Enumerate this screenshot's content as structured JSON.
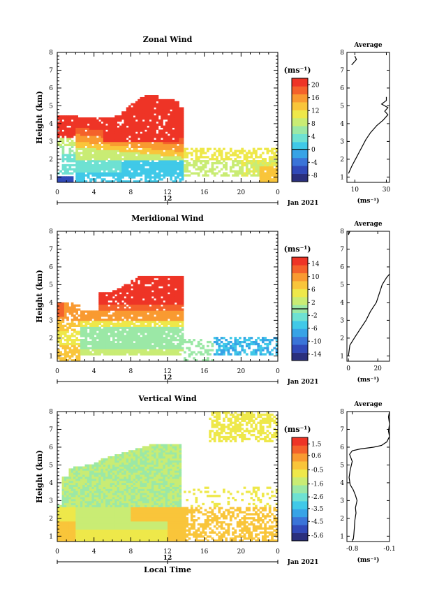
{
  "chart_data": [
    {
      "type": "heatmap",
      "title": "Zonal Wind",
      "ylabel": "Height (km)",
      "xlabel": "",
      "x_ticks": [
        "0",
        "4",
        "8",
        "12",
        "16",
        "20",
        "0"
      ],
      "y_ticks": [
        "1",
        "2",
        "3",
        "4",
        "5",
        "6",
        "7",
        "8"
      ],
      "date_axis_label": "12",
      "date_label": "Jan 2021",
      "colorbar": {
        "unit": "(ms⁻¹)",
        "labels": [
          "20",
          "16",
          "12",
          "8",
          "4",
          "0",
          "-4",
          "-8"
        ],
        "range": [
          -10,
          22
        ]
      },
      "average_profile": {
        "title": "Average",
        "xlabel": "(ms⁻¹)",
        "x_ticks": [
          "10",
          "30"
        ],
        "xlim": [
          5,
          32
        ],
        "points": [
          [
            6,
            1.2
          ],
          [
            8,
            1.6
          ],
          [
            11,
            2.1
          ],
          [
            14,
            2.6
          ],
          [
            17,
            3.1
          ],
          [
            20,
            3.5
          ],
          [
            24,
            3.9
          ],
          [
            28,
            4.2
          ],
          [
            31,
            4.5
          ],
          [
            29,
            4.7
          ],
          [
            31,
            4.9
          ],
          [
            27,
            5.1
          ],
          [
            30,
            5.3
          ],
          [
            30,
            5.5
          ]
        ],
        "points_upper": [
          [
            8,
            7.3
          ],
          [
            11,
            7.6
          ],
          [
            10,
            7.8
          ]
        ]
      }
    },
    {
      "type": "heatmap",
      "title": "Meridional Wind",
      "ylabel": "Height (km)",
      "xlabel": "",
      "x_ticks": [
        "0",
        "4",
        "8",
        "12",
        "16",
        "20",
        "0"
      ],
      "y_ticks": [
        "1",
        "2",
        "3",
        "4",
        "5",
        "6",
        "7",
        "8"
      ],
      "date_axis_label": "12",
      "date_label": "Jan 2021",
      "colorbar": {
        "unit": "(ms⁻¹)",
        "labels": [
          "14",
          "10",
          "6",
          "2",
          "-2",
          "-6",
          "-10",
          "-14"
        ],
        "range": [
          -16,
          16
        ]
      },
      "average_profile": {
        "title": "Average",
        "xlabel": "(ms⁻¹)",
        "x_ticks": [
          "0",
          "20"
        ],
        "xlim": [
          -1,
          28
        ],
        "points": [
          [
            0,
            1.0
          ],
          [
            1,
            1.6
          ],
          [
            4,
            2.0
          ],
          [
            8,
            2.5
          ],
          [
            12,
            3.0
          ],
          [
            15,
            3.5
          ],
          [
            19,
            4.0
          ],
          [
            21,
            4.5
          ],
          [
            23,
            5.0
          ],
          [
            26,
            5.4
          ],
          [
            28,
            5.6
          ]
        ],
        "points_upper": [
          [
            0,
            7.8
          ],
          [
            1,
            8.0
          ]
        ]
      }
    },
    {
      "type": "heatmap",
      "title": "Vertical Wind",
      "ylabel": "Height (km)",
      "xlabel": "Local Time",
      "x_ticks": [
        "0",
        "4",
        "8",
        "12",
        "16",
        "20",
        "0"
      ],
      "y_ticks": [
        "1",
        "2",
        "3",
        "4",
        "5",
        "6",
        "7",
        "8"
      ],
      "date_axis_label": "12",
      "date_label": "Jan 2021",
      "colorbar": {
        "unit": "(ms⁻¹)",
        "labels": [
          "1.5",
          "0.6",
          "-0.5",
          "-1.6",
          "-2.6",
          "-3.5",
          "-4.5",
          "-5.6"
        ],
        "range": [
          -6.0,
          2.0
        ]
      },
      "average_profile": {
        "title": "Average",
        "xlabel": "(ms⁻¹)",
        "x_ticks": [
          "-0.8",
          "-0.1"
        ],
        "xlim": [
          -0.9,
          -0.1
        ],
        "points": [
          [
            -0.78,
            0.8
          ],
          [
            -0.77,
            1.1
          ],
          [
            -0.76,
            1.5
          ],
          [
            -0.75,
            1.9
          ],
          [
            -0.73,
            2.3
          ],
          [
            -0.74,
            2.6
          ],
          [
            -0.71,
            3.0
          ],
          [
            -0.74,
            3.3
          ],
          [
            -0.78,
            3.6
          ],
          [
            -0.84,
            3.9
          ],
          [
            -0.86,
            4.3
          ],
          [
            -0.84,
            4.7
          ],
          [
            -0.8,
            5.2
          ],
          [
            -0.85,
            5.6
          ],
          [
            -0.8,
            5.8
          ],
          [
            -0.65,
            5.9
          ],
          [
            -0.4,
            6.0
          ],
          [
            -0.25,
            6.1
          ],
          [
            -0.15,
            6.3
          ],
          [
            -0.1,
            6.6
          ],
          [
            -0.12,
            6.9
          ],
          [
            -0.1,
            7.3
          ],
          [
            -0.12,
            7.7
          ],
          [
            -0.1,
            8.0
          ]
        ]
      }
    }
  ]
}
